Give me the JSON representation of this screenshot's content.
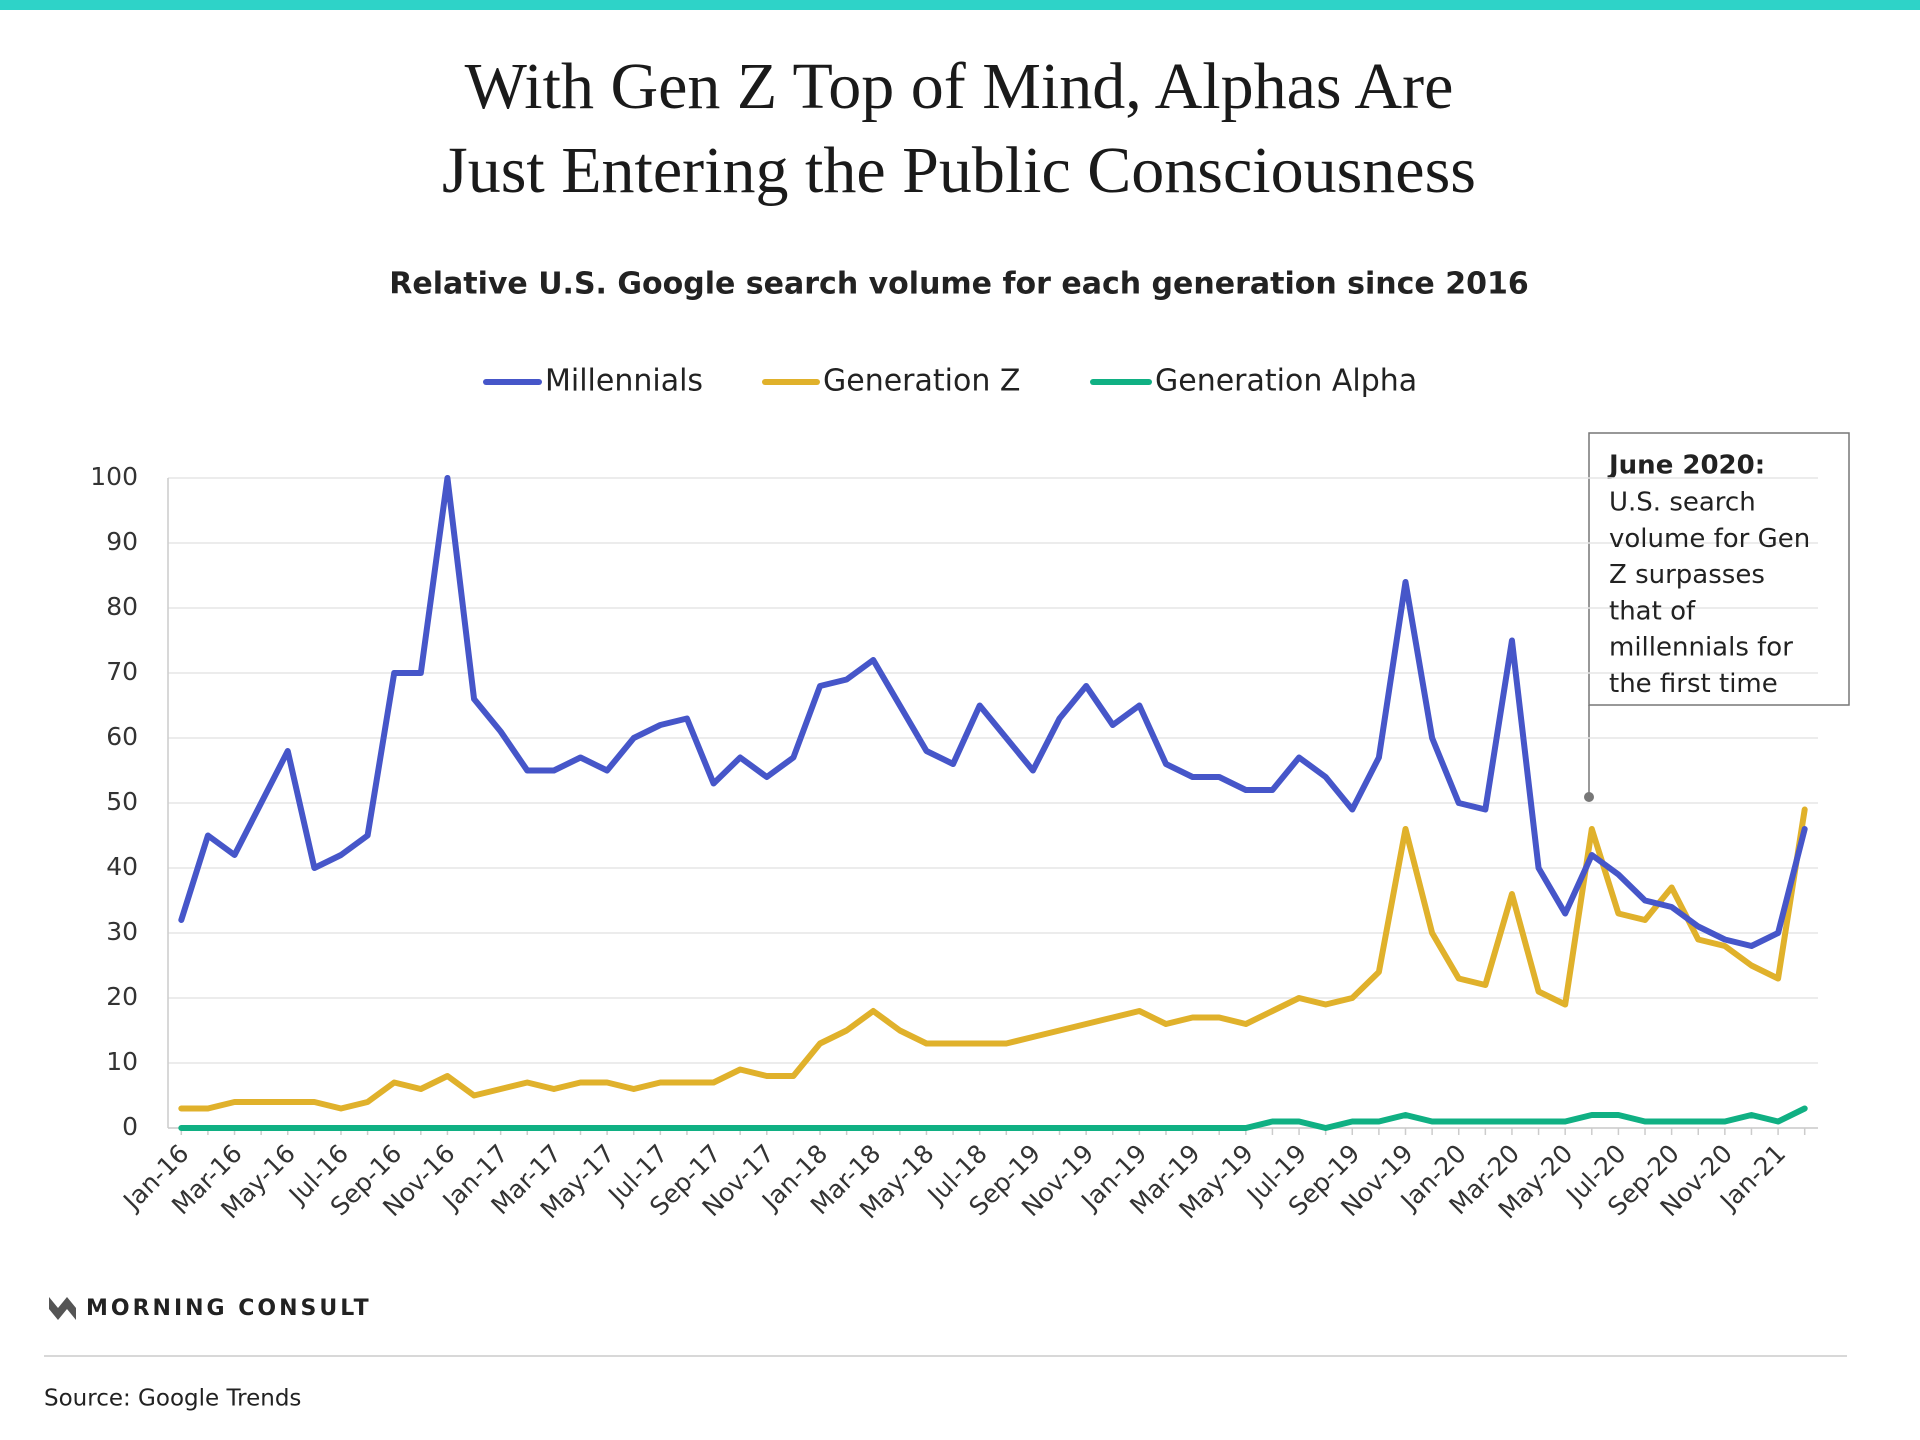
{
  "chart_data": {
    "type": "line",
    "title": [
      "With Gen Z Top of Mind, Alphas Are",
      "Just Entering the Public Consciousness"
    ],
    "subtitle": "Relative U.S. Google search volume for each generation since 2016",
    "categories": [
      "Jan-16",
      null,
      "Mar-16",
      null,
      "May-16",
      null,
      "Jul-16",
      null,
      "Sep-16",
      null,
      "Nov-16",
      null,
      "Jan-17",
      null,
      "Mar-17",
      null,
      "May-17",
      null,
      "Jul-17",
      null,
      "Sep-17",
      null,
      "Nov-17",
      null,
      "Jan-18",
      null,
      "Mar-18",
      null,
      "May-18",
      null,
      "Jul-18",
      null,
      "Sep-19",
      null,
      "Nov-19",
      null,
      "Jan-19",
      null,
      "Mar-19",
      null,
      "May-19",
      null,
      "Jul-19",
      null,
      "Sep-19",
      null,
      "Nov-19",
      null,
      "Jan-20",
      null,
      "Mar-20",
      null,
      "May-20",
      null,
      "Jul-20",
      null,
      "Sep-20",
      null,
      "Nov-20",
      null,
      "Jan-21",
      null
    ],
    "series": [
      {
        "name": "Millennials",
        "color": "#4656c9",
        "values": [
          32,
          45,
          42,
          50,
          58,
          40,
          42,
          45,
          70,
          70,
          100,
          66,
          61,
          55,
          55,
          57,
          55,
          60,
          62,
          63,
          53,
          57,
          54,
          57,
          68,
          69,
          72,
          65,
          58,
          56,
          65,
          60,
          55,
          63,
          68,
          62,
          65,
          56,
          54,
          54,
          52,
          52,
          57,
          54,
          49,
          57,
          84,
          60,
          50,
          49,
          75,
          40,
          33,
          42,
          39,
          35,
          34,
          31,
          29,
          28,
          30,
          46
        ]
      },
      {
        "name": "Generation Z",
        "color": "#e0b12b",
        "values": [
          3,
          3,
          4,
          4,
          4,
          4,
          3,
          4,
          7,
          6,
          8,
          5,
          6,
          7,
          6,
          7,
          7,
          6,
          7,
          7,
          7,
          9,
          8,
          8,
          13,
          15,
          18,
          15,
          13,
          13,
          13,
          13,
          14,
          15,
          16,
          17,
          18,
          16,
          17,
          17,
          16,
          18,
          20,
          19,
          20,
          24,
          46,
          30,
          23,
          22,
          36,
          21,
          19,
          46,
          33,
          32,
          37,
          29,
          28,
          25,
          23,
          49
        ]
      },
      {
        "name": "Generation Alpha",
        "color": "#10b083",
        "values": [
          0,
          0,
          0,
          0,
          0,
          0,
          0,
          0,
          0,
          0,
          0,
          0,
          0,
          0,
          0,
          0,
          0,
          0,
          0,
          0,
          0,
          0,
          0,
          0,
          0,
          0,
          0,
          0,
          0,
          0,
          0,
          0,
          0,
          0,
          0,
          0,
          0,
          0,
          0,
          0,
          0,
          1,
          1,
          0,
          1,
          1,
          2,
          1,
          1,
          1,
          1,
          1,
          1,
          2,
          2,
          1,
          1,
          1,
          1,
          2,
          1,
          3
        ]
      }
    ],
    "ylim": [
      0,
      100
    ],
    "yticks": [
      0,
      10,
      20,
      30,
      40,
      50,
      60,
      70,
      80,
      90,
      100
    ],
    "grid": true,
    "annotation": {
      "title": "June 2020:",
      "lines": [
        "U.S. search",
        "volume for Gen",
        "Z surpasses",
        "that of",
        "millennials for",
        "the first time"
      ]
    },
    "logo": "MORNING CONSULT",
    "source": "Source: Google Trends"
  }
}
